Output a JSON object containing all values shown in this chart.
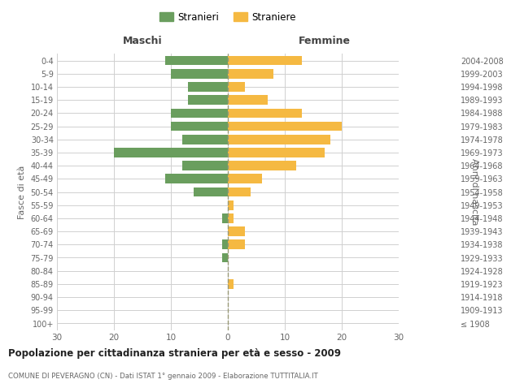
{
  "age_groups": [
    "100+",
    "95-99",
    "90-94",
    "85-89",
    "80-84",
    "75-79",
    "70-74",
    "65-69",
    "60-64",
    "55-59",
    "50-54",
    "45-49",
    "40-44",
    "35-39",
    "30-34",
    "25-29",
    "20-24",
    "15-19",
    "10-14",
    "5-9",
    "0-4"
  ],
  "birth_years": [
    "≤ 1908",
    "1909-1913",
    "1914-1918",
    "1919-1923",
    "1924-1928",
    "1929-1933",
    "1934-1938",
    "1939-1943",
    "1944-1948",
    "1949-1953",
    "1954-1958",
    "1959-1963",
    "1964-1968",
    "1969-1973",
    "1974-1978",
    "1979-1983",
    "1984-1988",
    "1989-1993",
    "1994-1998",
    "1999-2003",
    "2004-2008"
  ],
  "maschi": [
    0,
    0,
    0,
    0,
    0,
    1,
    1,
    0,
    1,
    0,
    6,
    11,
    8,
    20,
    8,
    10,
    10,
    7,
    7,
    10,
    11
  ],
  "femmine": [
    0,
    0,
    0,
    1,
    0,
    0,
    3,
    3,
    1,
    1,
    4,
    6,
    12,
    17,
    18,
    20,
    13,
    7,
    3,
    8,
    13
  ],
  "color_maschi": "#6a9e5e",
  "color_femmine": "#f5b942",
  "title": "Popolazione per cittadinanza straniera per età e sesso - 2009",
  "subtitle": "COMUNE DI PEVERAGNO (CN) - Dati ISTAT 1° gennaio 2009 - Elaborazione TUTTITALIA.IT",
  "xlabel_left": "Maschi",
  "xlabel_right": "Femmine",
  "ylabel_left": "Fasce di età",
  "ylabel_right": "Anni di nascita",
  "legend_maschi": "Stranieri",
  "legend_femmine": "Straniere",
  "xlim": 30,
  "bg_color": "#ffffff",
  "grid_color": "#d0d0d0"
}
